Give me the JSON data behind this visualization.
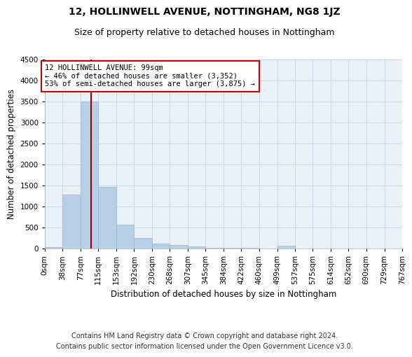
{
  "title": "12, HOLLINWELL AVENUE, NOTTINGHAM, NG8 1JZ",
  "subtitle": "Size of property relative to detached houses in Nottingham",
  "xlabel": "Distribution of detached houses by size in Nottingham",
  "ylabel": "Number of detached properties",
  "footnote1": "Contains HM Land Registry data © Crown copyright and database right 2024.",
  "footnote2": "Contains public sector information licensed under the Open Government Licence v3.0.",
  "bins": [
    0,
    38,
    77,
    115,
    153,
    192,
    230,
    268,
    307,
    345,
    384,
    422,
    460,
    499,
    537,
    575,
    614,
    652,
    690,
    729,
    767
  ],
  "bin_labels": [
    "0sqm",
    "38sqm",
    "77sqm",
    "115sqm",
    "153sqm",
    "192sqm",
    "230sqm",
    "268sqm",
    "307sqm",
    "345sqm",
    "384sqm",
    "422sqm",
    "460sqm",
    "499sqm",
    "537sqm",
    "575sqm",
    "614sqm",
    "652sqm",
    "690sqm",
    "729sqm",
    "767sqm"
  ],
  "values": [
    30,
    1280,
    3500,
    1470,
    570,
    250,
    120,
    80,
    45,
    25,
    15,
    15,
    5,
    70,
    5,
    0,
    0,
    0,
    0,
    0
  ],
  "bar_color": "#b8cfe8",
  "bar_edge_color": "#9ab4d4",
  "grid_color": "#c8d8e8",
  "bg_color": "#e8f0f8",
  "property_size": 99,
  "vline_color": "#990000",
  "annotation_line1": "12 HOLLINWELL AVENUE: 99sqm",
  "annotation_line2": "← 46% of detached houses are smaller (3,352)",
  "annotation_line3": "53% of semi-detached houses are larger (3,875) →",
  "annotation_box_color": "#cc0000",
  "ylim": [
    0,
    4500
  ],
  "yticks": [
    0,
    500,
    1000,
    1500,
    2000,
    2500,
    3000,
    3500,
    4000,
    4500
  ],
  "title_fontsize": 10,
  "subtitle_fontsize": 9,
  "axis_label_fontsize": 8.5,
  "tick_fontsize": 7.5,
  "annotation_fontsize": 7.5,
  "footnote_fontsize": 7
}
